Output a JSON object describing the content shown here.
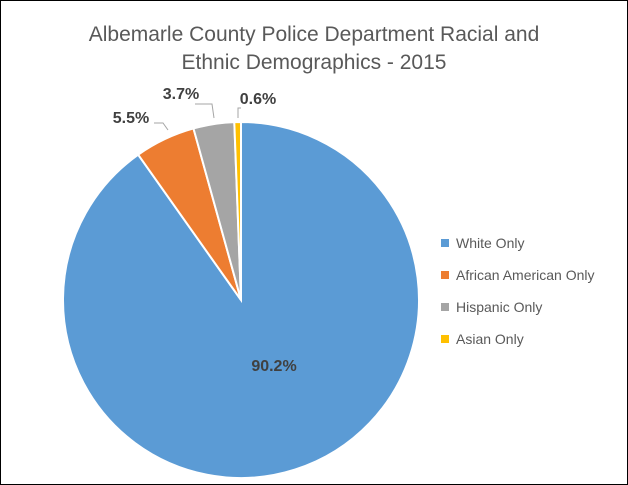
{
  "chart_data": {
    "type": "pie",
    "title": "Albemarle County Police Department Racial and Ethnic Demographics - 2015",
    "title_lines": [
      "Albemarle County Police Department Racial and",
      "Ethnic Demographics - 2015"
    ],
    "slices": [
      {
        "label": "White Only",
        "value": 90.2,
        "data_label": "90.2%",
        "color": "#5B9BD5"
      },
      {
        "label": "African American Only",
        "value": 5.5,
        "data_label": "5.5%",
        "color": "#ED7D31"
      },
      {
        "label": "Hispanic Only",
        "value": 3.7,
        "data_label": "3.7%",
        "color": "#A5A5A5"
      },
      {
        "label": "Asian Only",
        "value": 0.6,
        "data_label": "0.6%",
        "color": "#FFC000"
      }
    ],
    "legend_position": "right",
    "start_angle": "12 o'clock",
    "direction": "clockwise"
  }
}
